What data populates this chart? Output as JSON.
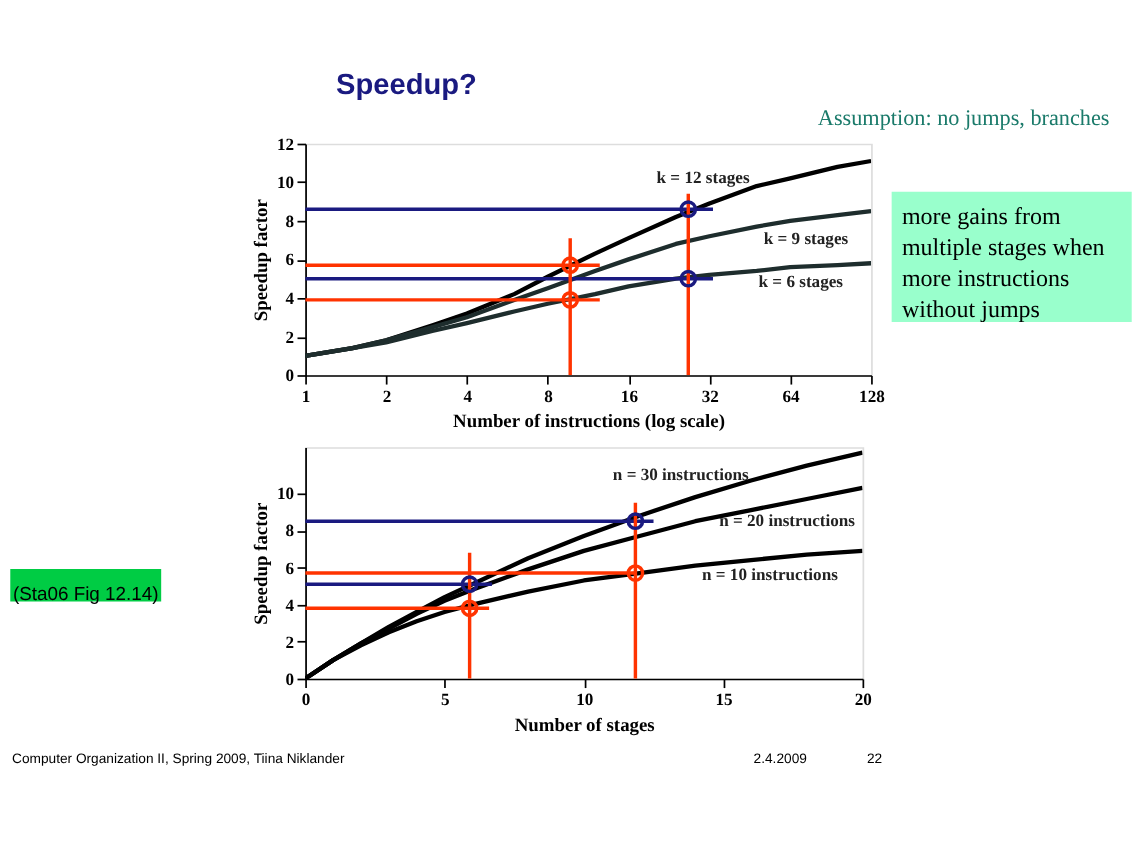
{
  "chart_data": [
    {
      "type": "line",
      "title": "Speedup?",
      "subtitle": "Assumption: no jumps, branches",
      "xlabel": "Number of instructions (log scale)",
      "ylabel": "Speedup factor",
      "log": "x",
      "xlim": [
        1,
        128
      ],
      "xticks": [
        1,
        2,
        4,
        8,
        16,
        32,
        64,
        128
      ],
      "ylim": [
        0,
        12
      ],
      "yticks": [
        0,
        2,
        4,
        6,
        8,
        10,
        12
      ],
      "grid": false,
      "marker": "none",
      "annotations": [
        "more gains from\nmultiple stages when\nmore instructions\nwithout jumps"
      ],
      "x": [
        1,
        1.5,
        2,
        3,
        4,
        6,
        8,
        12,
        16,
        24,
        32,
        48,
        64,
        96,
        128
      ],
      "series": [
        {
          "name": "k = 12 stages",
          "color": "#000000",
          "values": [
            1,
            1.4,
            1.8,
            2.6,
            3.2,
            4.2,
            5.1,
            6.3,
            7.1,
            8.2,
            8.9,
            9.8,
            10.2,
            10.8,
            11.1
          ]
        },
        {
          "name": "k = 9 stages",
          "color": "#1e2d2d",
          "values": [
            1,
            1.4,
            1.8,
            2.5,
            3,
            3.9,
            4.5,
            5.4,
            6,
            6.8,
            7.2,
            7.7,
            8,
            8.3,
            8.5
          ]
        },
        {
          "name": "k = 6 stages",
          "color": "#1e2d2d",
          "values": [
            1,
            1.4,
            1.7,
            2.3,
            2.7,
            3.3,
            3.7,
            4.2,
            4.6,
            5,
            5.2,
            5.4,
            5.6,
            5.7,
            5.8
          ]
        },
        {
          "type": "line",
          "color": "#1a1a80",
          "x": [
            1,
            33
          ],
          "values": [
            8.6,
            8.6
          ]
        },
        {
          "type": "line",
          "color": "#1a1a80",
          "x": [
            1,
            33
          ],
          "values": [
            5.0,
            5.0
          ]
        },
        {
          "type": "line",
          "color": "#ff3300",
          "x": [
            1,
            12.5
          ],
          "values": [
            5.7,
            5.7
          ]
        },
        {
          "type": "line",
          "color": "#ff3300",
          "x": [
            1,
            12.5
          ],
          "values": [
            3.9,
            3.9
          ]
        },
        {
          "type": "line",
          "color": "#ff3300",
          "x": [
            9.7,
            9.7
          ],
          "values": [
            0,
            7.1
          ]
        },
        {
          "type": "line",
          "color": "#ff3300",
          "x": [
            26.7,
            26.7
          ],
          "values": [
            0,
            9.4
          ]
        },
        {
          "type": "scatter",
          "marker": "circle",
          "color": "#ff3300",
          "x": [
            9.7,
            9.7
          ],
          "values": [
            5.7,
            3.9
          ]
        },
        {
          "type": "scatter",
          "marker": "circle",
          "color": "#1a1a80",
          "x": [
            26.7,
            26.7
          ],
          "values": [
            8.6,
            5.0
          ]
        }
      ]
    },
    {
      "type": "line",
      "xlabel": "Number of stages",
      "ylabel": "Speedup factor",
      "xlim": [
        0,
        20
      ],
      "xticks": [
        0,
        5,
        10,
        15,
        20
      ],
      "ylim": [
        0,
        12.5
      ],
      "yticks": [
        0,
        2,
        4,
        6,
        8,
        10
      ],
      "grid": false,
      "marker": "none",
      "annotations": [
        "(Sta06 Fig 12.14)",
        "Computer Organization II, Spring 2009, Tiina Niklander",
        "2.4.2009",
        "22"
      ],
      "x": [
        0,
        1,
        2,
        3,
        4,
        5,
        6,
        8,
        10,
        12,
        14,
        16,
        18,
        20
      ],
      "series": [
        {
          "name": "n = 30 instructions",
          "color": "#000000",
          "values": [
            0,
            1,
            1.9,
            2.8,
            3.6,
            4.4,
            5.1,
            6.5,
            7.7,
            8.8,
            9.8,
            10.7,
            11.5,
            12.2
          ]
        },
        {
          "name": "n = 20 instructions",
          "color": "#000000",
          "values": [
            0,
            1,
            1.9,
            2.7,
            3.5,
            4.2,
            4.8,
            5.9,
            6.9,
            7.7,
            8.5,
            9.1,
            9.7,
            10.3
          ]
        },
        {
          "name": "n = 10 instructions",
          "color": "#000000",
          "values": [
            0,
            1,
            1.8,
            2.5,
            3.1,
            3.6,
            4,
            4.7,
            5.3,
            5.7,
            6.1,
            6.4,
            6.7,
            6.9
          ]
        },
        {
          "type": "line",
          "color": "#1a1a80",
          "x": [
            0,
            12.5
          ],
          "values": [
            8.5,
            8.5
          ]
        },
        {
          "type": "line",
          "color": "#1a1a80",
          "x": [
            0,
            6.7
          ],
          "values": [
            5.1,
            5.1
          ]
        },
        {
          "type": "line",
          "color": "#ff3300",
          "x": [
            0,
            11.85
          ],
          "values": [
            5.7,
            5.7
          ]
        },
        {
          "type": "line",
          "color": "#ff3300",
          "x": [
            0,
            6.6
          ],
          "values": [
            3.8,
            3.8
          ]
        },
        {
          "type": "line",
          "color": "#ff3300",
          "x": [
            5.9,
            5.9
          ],
          "values": [
            0,
            6.8
          ]
        },
        {
          "type": "line",
          "color": "#ff3300",
          "x": [
            11.85,
            11.85
          ],
          "values": [
            0,
            9.5
          ]
        },
        {
          "type": "scatter",
          "marker": "circle",
          "color": "#1a1a80",
          "x": [
            5.9,
            11.85
          ],
          "values": [
            5.1,
            8.5
          ]
        },
        {
          "type": "scatter",
          "marker": "circle",
          "color": "#ff3300",
          "x": [
            5.9,
            11.85
          ],
          "values": [
            3.8,
            5.7
          ]
        }
      ]
    }
  ]
}
